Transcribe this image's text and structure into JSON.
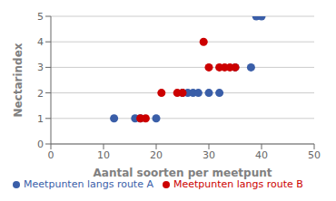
{
  "chart_data": {
    "type": "scatter",
    "xlabel": "Aantal soorten per meetpunt",
    "ylabel": "Nectarindex",
    "series": [
      {
        "name": "Meetpunten langs route A",
        "color": "#3A5EA8",
        "x": [
          12,
          16,
          17,
          20,
          25,
          26,
          27,
          28,
          30,
          32,
          35,
          38,
          39,
          40
        ],
        "values": [
          1,
          1,
          1,
          1,
          2,
          2,
          2,
          2,
          2,
          2,
          3,
          3,
          5,
          5
        ]
      },
      {
        "name": "Meetpunten langs route B",
        "color": "#CC0000",
        "x": [
          17,
          18,
          21,
          24,
          25,
          29,
          30,
          32,
          33,
          34,
          35
        ],
        "values": [
          1,
          1,
          2,
          2,
          2,
          4,
          3,
          3,
          3,
          3,
          3
        ]
      }
    ],
    "xlim": [
      0,
      50
    ],
    "ylim": [
      0,
      5
    ],
    "xticks": [
      0,
      10,
      20,
      30,
      40,
      50
    ],
    "yticks": [
      0,
      1,
      2,
      3,
      4,
      5
    ],
    "grid": "y",
    "legend": "bottom"
  }
}
